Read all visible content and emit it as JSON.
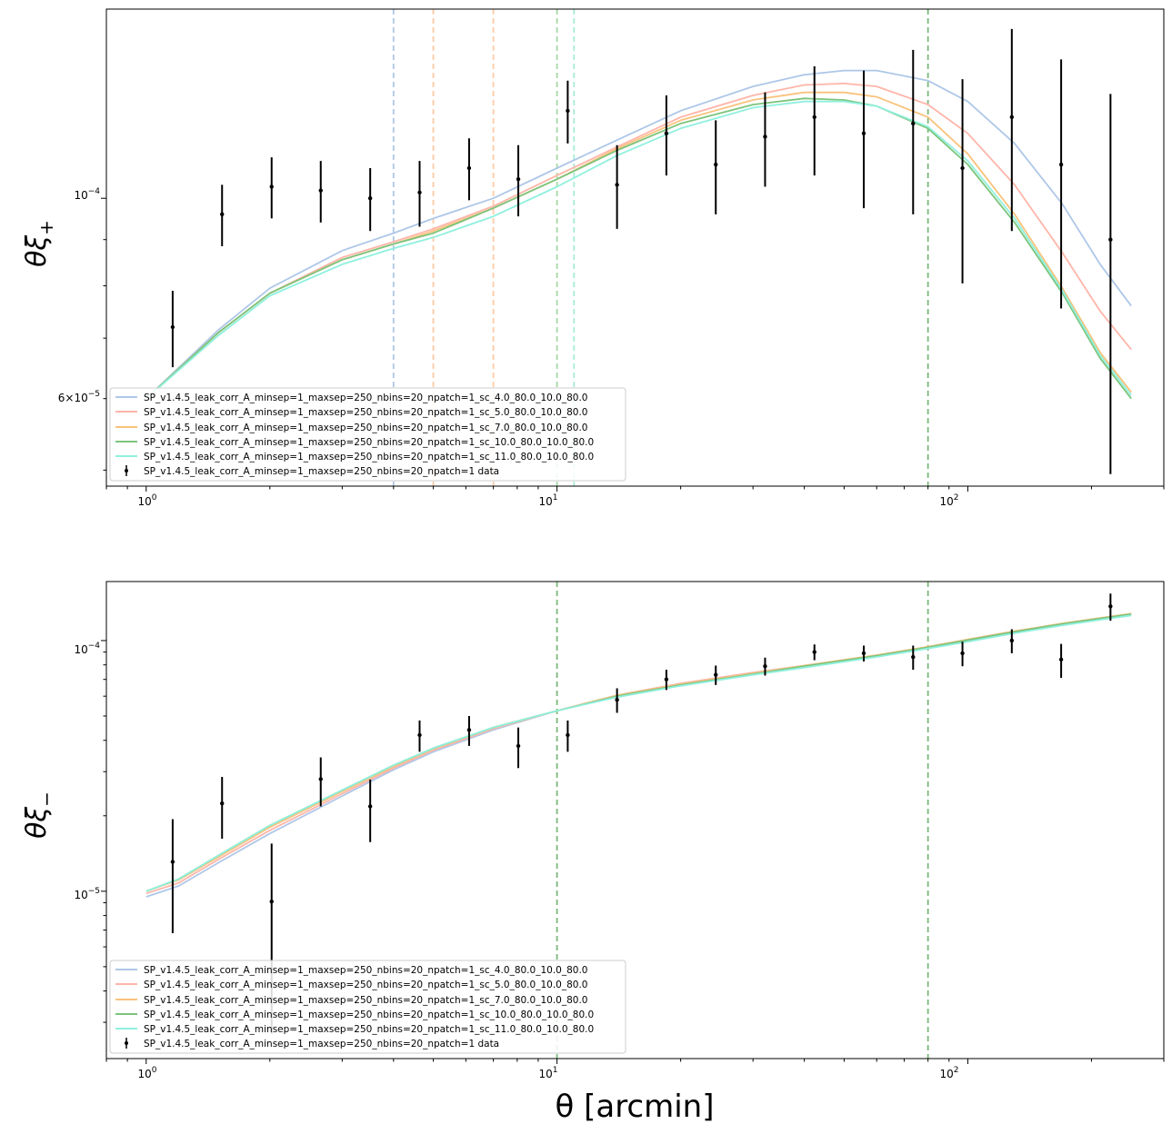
{
  "figure": {
    "xlabel": "θ [arcmin]",
    "x_tick_labels": {
      "t1": "10",
      "t10": "10",
      "t100": "10"
    },
    "x_tick_exponents": {
      "t1": "0",
      "t10": "1",
      "t100": "2"
    }
  },
  "panels": [
    {
      "id": "xi_plus",
      "ylabel": "θξ+",
      "ylabel_main": "θ",
      "ylabel_greek": "ξ",
      "ylabel_sub": "+",
      "ylim": [
        4.8e-05,
        0.000162
      ],
      "y_tick_labels": [
        {
          "value": 0.0001,
          "mantissa": "10",
          "exponent": "−4"
        },
        {
          "value": 6e-05,
          "mantissa": "6×10",
          "exponent": "−5"
        }
      ]
    },
    {
      "id": "xi_minus",
      "ylabel": "θξ−",
      "ylabel_main": "θ",
      "ylabel_greek": "ξ",
      "ylabel_sub": "−",
      "ylim": [
        2.15e-06,
        0.000172
      ],
      "y_tick_labels": [
        {
          "value": 0.0001,
          "mantissa": "10",
          "exponent": "−4"
        },
        {
          "value": 1e-05,
          "mantissa": "10",
          "exponent": "−5"
        }
      ]
    }
  ],
  "legend": {
    "entries": [
      {
        "label": "SP_v1.4.5_leak_corr_A_minsep=1_maxsep=250_nbins=20_npatch=1_sc_4.0_80.0_10.0_80.0",
        "color": "#aec7e8"
      },
      {
        "label": "SP_v1.4.5_leak_corr_A_minsep=1_maxsep=250_nbins=20_npatch=1_sc_5.0_80.0_10.0_80.0",
        "color": "#ffb5a9"
      },
      {
        "label": "SP_v1.4.5_leak_corr_A_minsep=1_maxsep=250_nbins=20_npatch=1_sc_7.0_80.0_10.0_80.0",
        "color": "#f9c27c"
      },
      {
        "label": "SP_v1.4.5_leak_corr_A_minsep=1_maxsep=250_nbins=20_npatch=1_sc_10.0_80.0_10.0_80.0",
        "color": "#7cc47c"
      },
      {
        "label": "SP_v1.4.5_leak_corr_A_minsep=1_maxsep=250_nbins=20_npatch=1_sc_11.0_80.0_10.0_80.0",
        "color": "#8ff0dd"
      },
      {
        "label": "SP_v1.4.5_leak_corr_A_minsep=1_maxsep=250_nbins=20_npatch=1 data",
        "color": "#000000",
        "marker": "errorbar"
      }
    ]
  },
  "chart_data": [
    {
      "type": "line",
      "title": "",
      "xlabel": "θ [arcmin]",
      "ylabel": "θξ+",
      "xscale": "log",
      "yscale": "log",
      "xlim": [
        0.8,
        300
      ],
      "ylim": [
        4.8e-05,
        0.000162
      ],
      "vlines": [
        {
          "x": 4.0,
          "color": "#aec7e8",
          "style": "dashed"
        },
        {
          "x": 5.0,
          "color": "#ffcba6",
          "style": "dashed"
        },
        {
          "x": 7.0,
          "color": "#ffcba6",
          "style": "dashed"
        },
        {
          "x": 10.0,
          "color": "#a7d8a7",
          "style": "dashed"
        },
        {
          "x": 11.0,
          "color": "#a6ecd8",
          "style": "dashed"
        },
        {
          "x": 80.0,
          "color": "#7cb87c",
          "style": "dashed"
        }
      ],
      "model_x": [
        1.0,
        1.5,
        2.0,
        3.0,
        4.0,
        5.0,
        7.0,
        10.0,
        14.0,
        20.0,
        30.0,
        40.0,
        50.0,
        60.0,
        80.0,
        100.0,
        130.0,
        170.0,
        210.0,
        250.0
      ],
      "series": [
        {
          "name": "sc_4.0_80.0_10.0_80.0",
          "color": "#aec7e8",
          "values": [
            6e-05,
            7.15e-05,
            7.95e-05,
            8.75e-05,
            9.15e-05,
            9.5e-05,
            0.0001,
            0.000108,
            0.000116,
            0.000125,
            0.000133,
            0.000137,
            0.0001385,
            0.0001385,
            0.000135,
            0.000128,
            0.000115,
            9.85e-05,
            8.45e-05,
            7.6e-05
          ]
        },
        {
          "name": "sc_5.0_80.0_10.0_80.0",
          "color": "#ffb5a9",
          "values": [
            6e-05,
            7.1e-05,
            7.85e-05,
            8.6e-05,
            8.95e-05,
            9.25e-05,
            9.8e-05,
            0.000106,
            0.000114,
            0.000123,
            0.00013,
            0.0001335,
            0.000134,
            0.000133,
            0.000127,
            0.000118,
            0.0001035,
            8.7e-05,
            7.5e-05,
            6.8e-05
          ]
        },
        {
          "name": "sc_7.0_80.0_10.0_80.0",
          "color": "#f9c27c",
          "values": [
            6e-05,
            7.1e-05,
            7.85e-05,
            8.55e-05,
            8.9e-05,
            9.2e-05,
            9.75e-05,
            0.000105,
            0.0001135,
            0.000122,
            0.0001285,
            0.000131,
            0.000131,
            0.0001295,
            0.000123,
            0.000112,
            9.6e-05,
            7.95e-05,
            6.75e-05,
            6.1e-05
          ]
        },
        {
          "name": "sc_10.0_80.0_10.0_80.0",
          "color": "#7cc47c",
          "values": [
            6e-05,
            7.1e-05,
            7.85e-05,
            8.55e-05,
            8.9e-05,
            9.15e-05,
            9.75e-05,
            0.000105,
            0.000113,
            0.000121,
            0.000127,
            0.000129,
            0.0001285,
            0.0001265,
            0.0001195,
            0.000109,
            9.4e-05,
            7.85e-05,
            6.65e-05,
            6e-05
          ]
        },
        {
          "name": "sc_11.0_80.0_10.0_80.0",
          "color": "#8ff0dd",
          "values": [
            6e-05,
            7.05e-05,
            7.8e-05,
            8.45e-05,
            8.8e-05,
            9.05e-05,
            9.55e-05,
            0.000103,
            0.0001115,
            0.0001195,
            0.000126,
            0.000128,
            0.000128,
            0.0001265,
            0.00012,
            0.00011,
            9.5e-05,
            7.9e-05,
            6.7e-05,
            6.05e-05
          ]
        }
      ],
      "data_points": {
        "name": "data",
        "x": [
          1.16,
          1.53,
          2.02,
          2.66,
          3.51,
          4.63,
          6.11,
          8.05,
          10.62,
          14.0,
          18.46,
          24.35,
          32.1,
          42.33,
          55.81,
          73.6,
          97.05,
          127.97,
          168.74,
          222.5
        ],
        "y": [
          7.2e-05,
          9.6e-05,
          0.000103,
          0.000102,
          0.0001,
          0.0001015,
          0.000108,
          0.000105,
          0.000125,
          0.0001035,
          0.000118,
          0.000109,
          0.000117,
          0.000123,
          0.000118,
          0.000121,
          0.000108,
          0.000123,
          0.000109,
          9e-05
        ],
        "yerr_low": [
          7e-06,
          7.5e-06,
          8e-06,
          8e-06,
          8e-06,
          8.5e-06,
          8.5e-06,
          9.5e-06,
          1e-05,
          1.1e-05,
          1.2e-05,
          1.3e-05,
          1.4e-05,
          1.7e-05,
          2.05e-05,
          2.5e-05,
          2.75e-05,
          3.1e-05,
          3.35e-05,
          4.05e-05
        ],
        "yerr_high": [
          7e-06,
          7.5e-06,
          8e-06,
          8e-06,
          8e-06,
          8.5e-06,
          8.5e-06,
          9.5e-06,
          1e-05,
          1.1e-05,
          1.2e-05,
          1.3e-05,
          1.4e-05,
          1.7e-05,
          2.05e-05,
          2.5e-05,
          2.75e-05,
          3.1e-05,
          3.35e-05,
          4.05e-05
        ]
      },
      "legend_position": "lower left"
    },
    {
      "type": "line",
      "title": "",
      "xlabel": "θ [arcmin]",
      "ylabel": "θξ−",
      "xscale": "log",
      "yscale": "log",
      "xlim": [
        0.8,
        300
      ],
      "ylim": [
        2.15e-06,
        0.000172
      ],
      "vlines": [
        {
          "x": 10.0,
          "color": "#7cb87c",
          "style": "dashed"
        },
        {
          "x": 80.0,
          "color": "#7cb87c",
          "style": "dashed"
        }
      ],
      "model_x": [
        1.0,
        1.2,
        1.5,
        2.0,
        3.0,
        4.0,
        5.0,
        7.0,
        10.0,
        14.0,
        20.0,
        30.0,
        40.0,
        60.0,
        80.0,
        100.0,
        130.0,
        170.0,
        210.0,
        250.0
      ],
      "series": [
        {
          "name": "sc_4.0_80.0_10.0_80.0",
          "color": "#aec7e8",
          "values": [
            9.5e-06,
            1.05e-05,
            1.3e-05,
            1.7e-05,
            2.4e-05,
            3.05e-05,
            3.6e-05,
            4.4e-05,
            5.25e-05,
            6.05e-05,
            6.75e-05,
            7.4e-05,
            7.9e-05,
            8.7e-05,
            9.4e-05,
            0.0001,
            0.000108,
            0.000116,
            0.000122,
            0.000127
          ]
        },
        {
          "name": "sc_5.0_80.0_10.0_80.0",
          "color": "#ffb5a9",
          "values": [
            9.8e-06,
            1.08e-05,
            1.34e-05,
            1.75e-05,
            2.45e-05,
            3.1e-05,
            3.65e-05,
            4.45e-05,
            5.25e-05,
            6.05e-05,
            6.75e-05,
            7.45e-05,
            7.95e-05,
            8.75e-05,
            9.45e-05,
            0.000101,
            0.000109,
            0.000117,
            0.000123,
            0.000128
          ]
        },
        {
          "name": "sc_7.0_80.0_10.0_80.0",
          "color": "#f9c27c",
          "values": [
            1e-05,
            1.11e-05,
            1.37e-05,
            1.8e-05,
            2.5e-05,
            3.15e-05,
            3.7e-05,
            4.5e-05,
            5.25e-05,
            6.05e-05,
            6.7e-05,
            7.4e-05,
            7.95e-05,
            8.75e-05,
            9.45e-05,
            0.000101,
            0.000109,
            0.000117,
            0.000123,
            0.000128
          ]
        },
        {
          "name": "sc_10.0_80.0_10.0_80.0",
          "color": "#7cc47c",
          "values": [
            1e-05,
            1.12e-05,
            1.39e-05,
            1.83e-05,
            2.53e-05,
            3.18e-05,
            3.72e-05,
            4.5e-05,
            5.25e-05,
            6e-05,
            6.65e-05,
            7.35e-05,
            7.9e-05,
            8.7e-05,
            9.4e-05,
            0.0001005,
            0.0001085,
            0.0001165,
            0.0001225,
            0.0001275
          ]
        },
        {
          "name": "sc_11.0_80.0_10.0_80.0",
          "color": "#8ff0dd",
          "values": [
            1e-05,
            1.12e-05,
            1.39e-05,
            1.83e-05,
            2.53e-05,
            3.18e-05,
            3.72e-05,
            4.5e-05,
            5.25e-05,
            5.95e-05,
            6.6e-05,
            7.3e-05,
            7.8e-05,
            8.6e-05,
            9.3e-05,
            9.9e-05,
            0.000107,
            0.000115,
            0.000121,
            0.000126
          ]
        }
      ],
      "data_points": {
        "name": "data",
        "x": [
          1.16,
          1.53,
          2.02,
          2.66,
          3.51,
          4.63,
          6.11,
          8.05,
          10.62,
          14.0,
          18.46,
          24.35,
          32.1,
          42.33,
          55.81,
          73.6,
          97.05,
          127.97,
          168.74,
          222.5
        ],
        "y": [
          1.31e-05,
          2.24e-05,
          9.1e-06,
          2.8e-05,
          2.18e-05,
          4.2e-05,
          4.4e-05,
          3.8e-05,
          4.2e-05,
          5.8e-05,
          7e-05,
          7.3e-05,
          7.9e-05,
          9e-05,
          8.9e-05,
          8.6e-05,
          8.9e-05,
          0.0001,
          8.4e-05,
          0.000137
        ],
        "yerr_low": [
          6.3e-06,
          6.2e-06,
          6.4e-06,
          6.2e-06,
          6.1e-06,
          6e-06,
          6e-06,
          7e-06,
          6e-06,
          6.5e-06,
          6.5e-06,
          6.5e-06,
          6.5e-06,
          6.5e-06,
          6.5e-06,
          9.5e-06,
          1e-05,
          1.1e-05,
          1.3e-05,
          1.7e-05
        ],
        "yerr_high": [
          6.3e-06,
          6.2e-06,
          6.4e-06,
          6.2e-06,
          6.1e-06,
          6e-06,
          6e-06,
          7e-06,
          6e-06,
          6.5e-06,
          6.5e-06,
          6.5e-06,
          6.5e-06,
          6.5e-06,
          6.5e-06,
          9.5e-06,
          1e-05,
          1.1e-05,
          1.3e-05,
          1.7e-05
        ]
      },
      "legend_position": "lower left"
    }
  ]
}
